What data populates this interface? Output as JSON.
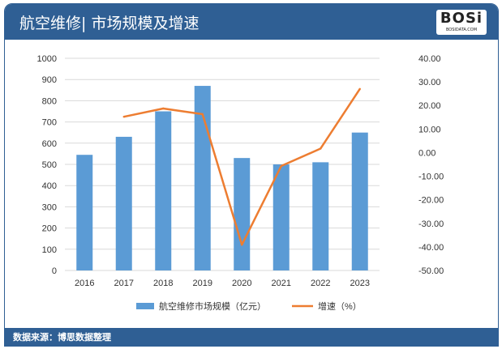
{
  "header": {
    "title": "航空维修| 市场规模及增速",
    "logo_text": "BOSi",
    "logo_sub": "BOSIDATA.COM"
  },
  "footer": {
    "source": "数据来源：博思数据整理"
  },
  "chart_data": {
    "type": "bar+line",
    "categories": [
      "2016",
      "2017",
      "2018",
      "2019",
      "2020",
      "2021",
      "2022",
      "2023"
    ],
    "series": [
      {
        "name": "航空维修市场规模（亿元）",
        "type": "bar",
        "axis": "left",
        "color": "#5b9bd5",
        "values": [
          545,
          630,
          750,
          870,
          530,
          500,
          510,
          650
        ]
      },
      {
        "name": "增速（%）",
        "type": "line",
        "axis": "right",
        "color": "#ed7d31",
        "values": [
          null,
          15.2,
          18.7,
          16.3,
          -39.1,
          -5.7,
          1.7,
          27.0
        ]
      }
    ],
    "left_axis": {
      "min": 0,
      "max": 1000,
      "step": 100,
      "ticks": [
        "0",
        "100",
        "200",
        "300",
        "400",
        "500",
        "600",
        "700",
        "800",
        "900",
        "1000"
      ]
    },
    "right_axis": {
      "min": -50,
      "max": 40,
      "step": 10,
      "ticks": [
        "-50.00",
        "-40.00",
        "-30.00",
        "-20.00",
        "-10.00",
        "0.00",
        "10.00",
        "20.00",
        "30.00",
        "40.00"
      ]
    },
    "grid": true,
    "legend_position": "bottom"
  }
}
